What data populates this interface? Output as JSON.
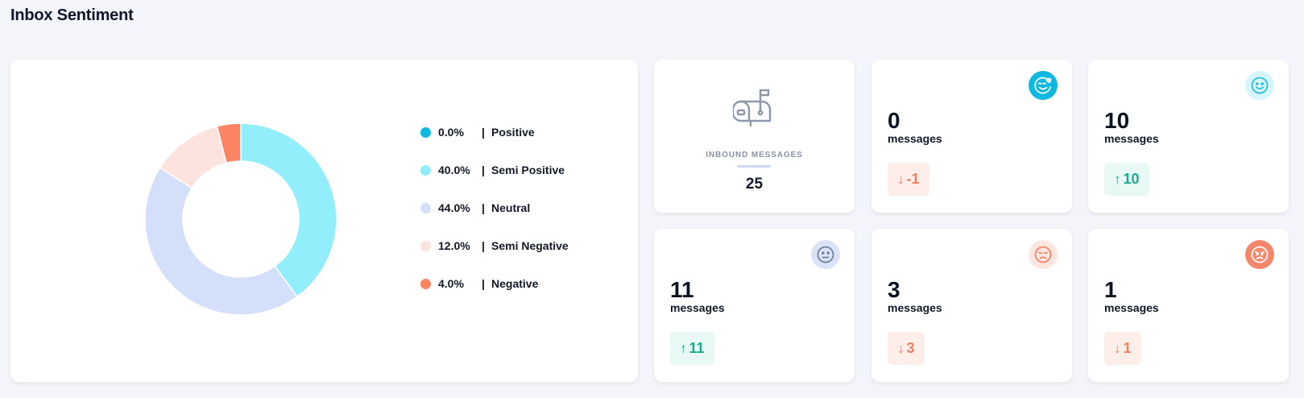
{
  "page": {
    "title": "Inbox Sentiment"
  },
  "chart_data": {
    "type": "pie",
    "title": "",
    "donut": true,
    "legend_position": "right",
    "slices": [
      {
        "label": "Positive",
        "value": 0.0,
        "display": "0.0%",
        "color": "#0fb8df"
      },
      {
        "label": "Semi Positive",
        "value": 40.0,
        "display": "40.0%",
        "color": "#93eefb"
      },
      {
        "label": "Neutral",
        "value": 44.0,
        "display": "44.0%",
        "color": "#d4dffa"
      },
      {
        "label": "Semi Negative",
        "value": 12.0,
        "display": "12.0%",
        "color": "#fde3dd"
      },
      {
        "label": "Negative",
        "value": 4.0,
        "display": "4.0%",
        "color": "#fb8465"
      }
    ]
  },
  "legend": {
    "separator": "|"
  },
  "inbound": {
    "label": "INBOUND MESSAGES",
    "count": "25",
    "icon": "mailbox-icon"
  },
  "stats": [
    {
      "key": "positive",
      "value": "0",
      "unit": "messages",
      "change": "-1",
      "direction": "down",
      "icon": "love-face-icon",
      "icon_bg": "#0fb8df",
      "icon_fg": "#ffffff"
    },
    {
      "key": "semi-positive",
      "value": "10",
      "unit": "messages",
      "change": "10",
      "direction": "up",
      "icon": "smile-face-icon",
      "icon_bg": "#d6f6fb",
      "icon_fg": "#21bde0"
    },
    {
      "key": "neutral",
      "value": "11",
      "unit": "messages",
      "change": "11",
      "direction": "up",
      "icon": "neutral-face-icon",
      "icon_bg": "#dae3f8",
      "icon_fg": "#6f7e9c"
    },
    {
      "key": "semi-negative",
      "value": "3",
      "unit": "messages",
      "change": "3",
      "direction": "down",
      "icon": "unamused-face-icon",
      "icon_bg": "#fde6e0",
      "icon_fg": "#f08262"
    },
    {
      "key": "negative",
      "value": "1",
      "unit": "messages",
      "change": "1",
      "direction": "down",
      "icon": "angry-face-icon",
      "icon_bg": "#f6866b",
      "icon_fg": "#ffffff"
    }
  ]
}
